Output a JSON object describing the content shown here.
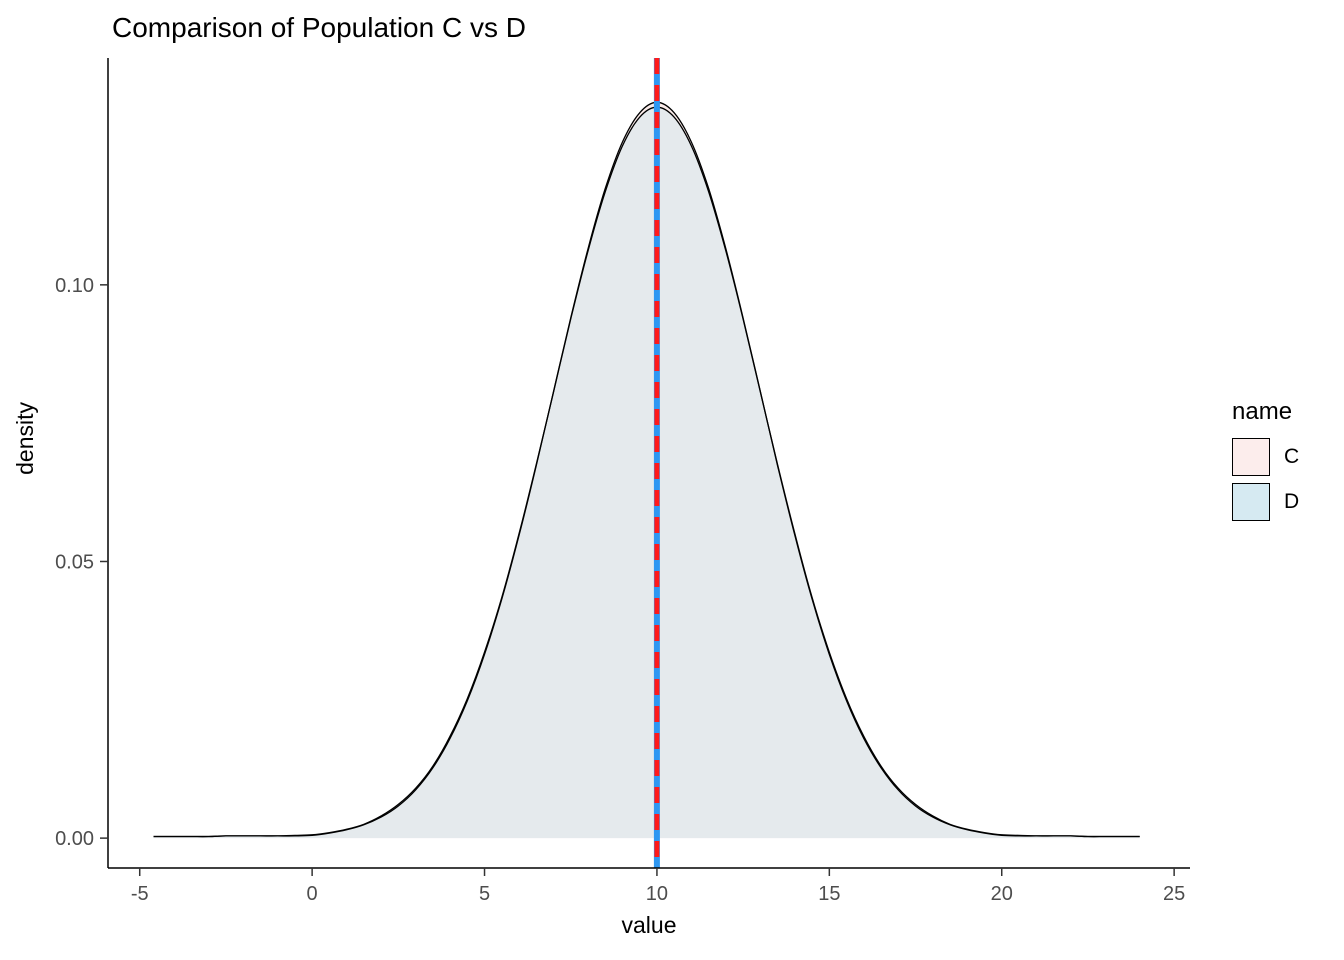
{
  "chart_data": {
    "type": "area",
    "title": "Comparison of Population C vs D",
    "xlabel": "value",
    "ylabel": "density",
    "xlim": [
      -5.92,
      25.46
    ],
    "ylim": [
      -0.0054,
      0.141
    ],
    "grid": "off",
    "legend_position": "right",
    "x_ticks": [
      {
        "v": -5,
        "label": "-5"
      },
      {
        "v": 0,
        "label": "0"
      },
      {
        "v": 5,
        "label": "5"
      },
      {
        "v": 10,
        "label": "10"
      },
      {
        "v": 15,
        "label": "15"
      },
      {
        "v": 20,
        "label": "20"
      },
      {
        "v": 25,
        "label": "25"
      }
    ],
    "y_ticks": [
      {
        "v": 0,
        "label": "0.00"
      },
      {
        "v": 0.05,
        "label": "0.05"
      },
      {
        "v": 0.1,
        "label": "0.10"
      }
    ],
    "x": [
      -4.6,
      -4,
      -3.5,
      -3,
      -2.5,
      -2,
      -1.5,
      -1,
      -0.5,
      0,
      0.5,
      1,
      1.5,
      2,
      2.5,
      3,
      3.5,
      4,
      4.5,
      5,
      5.5,
      6,
      6.5,
      7,
      7.5,
      8,
      8.5,
      9,
      9.5,
      10,
      10.5,
      11,
      11.5,
      12,
      12.5,
      13,
      13.5,
      14,
      14.5,
      15,
      15.5,
      16,
      16.5,
      17,
      17.5,
      18,
      18.5,
      19,
      19.5,
      20,
      20.5,
      21,
      21.5,
      22,
      22.5,
      23,
      23.5,
      24
    ],
    "series": [
      {
        "name": "C",
        "fill": "#FBECEA",
        "fill_opacity": 1,
        "stroke": "#000000",
        "values": [
          0.0003,
          0.0003,
          0.0003,
          0.0003,
          0.0004,
          0.0004,
          0.0004,
          0.0004,
          0.0004,
          0.0005,
          0.0009,
          0.0015,
          0.0024,
          0.0038,
          0.0058,
          0.0087,
          0.0127,
          0.018,
          0.0248,
          0.0332,
          0.0432,
          0.0547,
          0.0673,
          0.0807,
          0.094,
          0.1065,
          0.1174,
          0.1258,
          0.1311,
          0.133,
          0.1311,
          0.1258,
          0.1174,
          0.1065,
          0.094,
          0.0807,
          0.0673,
          0.0547,
          0.0432,
          0.0332,
          0.0248,
          0.018,
          0.0127,
          0.0087,
          0.0058,
          0.0038,
          0.0024,
          0.0015,
          0.0009,
          0.0005,
          0.0004,
          0.0004,
          0.0004,
          0.0004,
          0.0003,
          0.0003,
          0.0003,
          0.0003
        ]
      },
      {
        "name": "D",
        "fill": "#CFE7EF",
        "fill_opacity": 0.5,
        "stroke": "#000000",
        "values": [
          0.0003,
          0.0003,
          0.0003,
          0.0003,
          0.0004,
          0.0004,
          0.0004,
          0.0004,
          0.0005,
          0.0006,
          0.001,
          0.0016,
          0.0025,
          0.004,
          0.0061,
          0.009,
          0.013,
          0.0184,
          0.0252,
          0.0336,
          0.0435,
          0.055,
          0.0675,
          0.0806,
          0.0938,
          0.1061,
          0.1168,
          0.1251,
          0.1303,
          0.1321,
          0.1303,
          0.1251,
          0.1168,
          0.1061,
          0.0938,
          0.0806,
          0.0675,
          0.055,
          0.0435,
          0.0336,
          0.0252,
          0.0184,
          0.013,
          0.009,
          0.0061,
          0.004,
          0.0025,
          0.0016,
          0.001,
          0.0006,
          0.0005,
          0.0004,
          0.0004,
          0.0004,
          0.0003,
          0.0003,
          0.0003,
          0.0003
        ]
      }
    ],
    "vlines": [
      {
        "x": 10,
        "style": "solid",
        "color": "#2E97F2",
        "width": 6
      },
      {
        "x": 10,
        "style": "dashed",
        "color": "#FF1A1A",
        "width": 5
      }
    ],
    "legend": {
      "title": "name",
      "entries": [
        {
          "label": "C",
          "fill": "#FCEDEC"
        },
        {
          "label": "D",
          "fill": "#D6EAF2"
        }
      ]
    }
  }
}
